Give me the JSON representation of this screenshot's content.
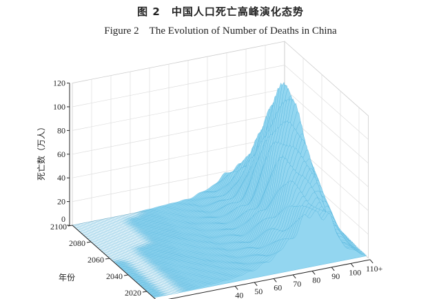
{
  "caption": {
    "cn": "图 2　中国人口死亡高峰演化态势",
    "en": "Figure 2　The Evolution of Number of Deaths in China"
  },
  "chart_data": {
    "type": "surface",
    "title": "The Evolution of Number of Deaths in China",
    "zlabel": "死亡数（万人）",
    "ylabel": "年份",
    "xlabel": "",
    "x_ticks": [
      "40",
      "50",
      "60",
      "70",
      "80",
      "90",
      "100",
      "110+"
    ],
    "y_ticks": [
      "2020",
      "2040",
      "2060",
      "2080",
      "2100"
    ],
    "z_ticks": [
      "0",
      "20",
      "40",
      "60",
      "80",
      "100",
      "120"
    ],
    "xlim": [
      0,
      110
    ],
    "ylim": [
      2010,
      2100
    ],
    "zlim": [
      0,
      120
    ],
    "grid": true,
    "color": "#8fd3ef",
    "edge_color": "#2e9fd0",
    "ages": [
      0,
      10,
      20,
      30,
      40,
      50,
      60,
      70,
      80,
      90,
      100,
      110
    ],
    "years": [
      2020,
      2030,
      2040,
      2050,
      2060,
      2070,
      2080,
      2090,
      2100
    ],
    "deaths": [
      [
        1,
        0,
        1,
        2,
        3,
        6,
        12,
        25,
        45,
        40,
        10,
        1
      ],
      [
        1,
        0,
        1,
        2,
        3,
        5,
        12,
        30,
        60,
        60,
        20,
        2
      ],
      [
        1,
        0,
        1,
        2,
        2,
        5,
        10,
        30,
        75,
        80,
        35,
        3
      ],
      [
        1,
        0,
        1,
        1,
        2,
        4,
        10,
        25,
        80,
        105,
        50,
        5
      ],
      [
        0,
        0,
        1,
        1,
        2,
        3,
        8,
        22,
        70,
        112,
        60,
        8
      ],
      [
        0,
        0,
        0,
        1,
        1,
        3,
        7,
        18,
        50,
        90,
        55,
        8
      ],
      [
        0,
        0,
        0,
        1,
        1,
        2,
        5,
        14,
        35,
        65,
        40,
        6
      ],
      [
        0,
        0,
        0,
        1,
        1,
        2,
        4,
        10,
        25,
        40,
        28,
        4
      ],
      [
        0,
        0,
        0,
        0,
        1,
        2,
        3,
        8,
        18,
        25,
        18,
        3
      ]
    ]
  }
}
